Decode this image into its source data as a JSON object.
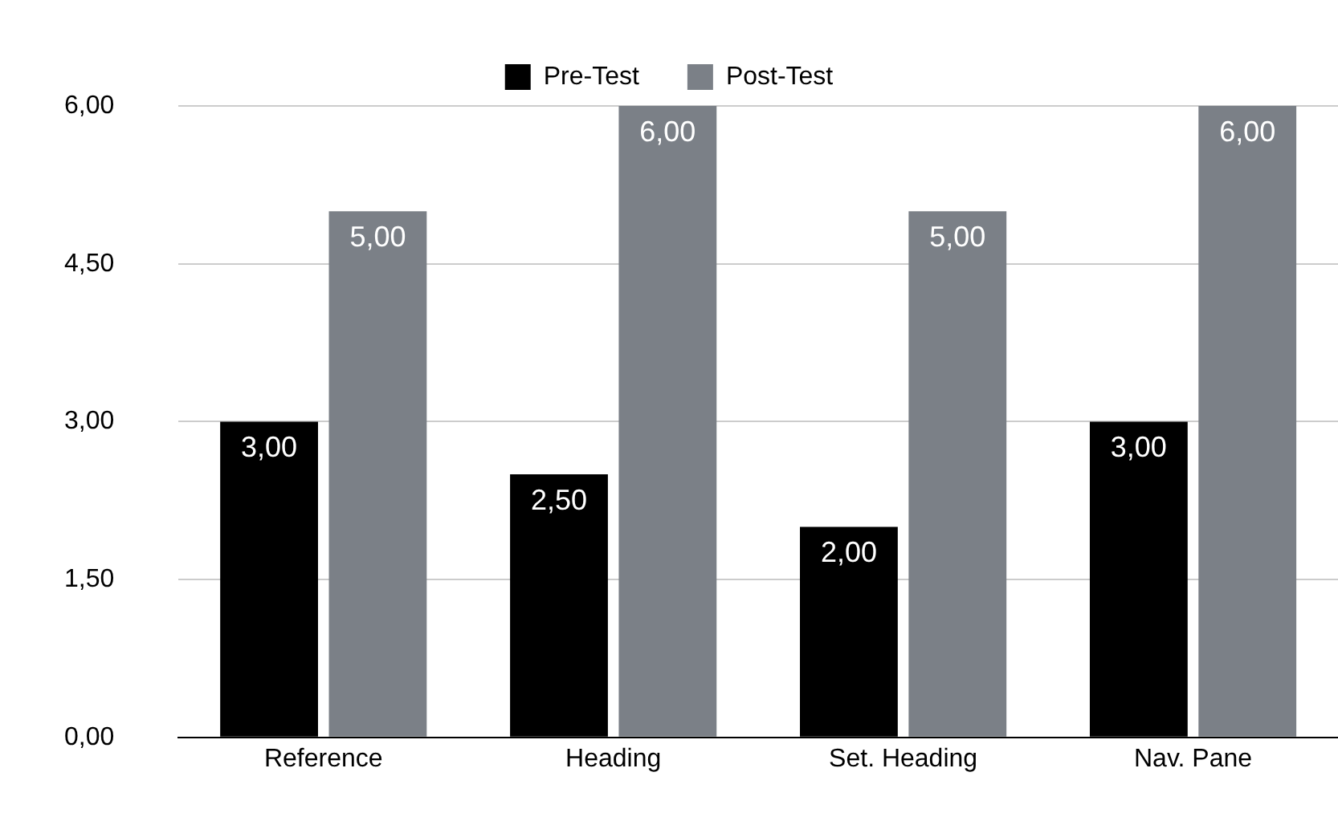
{
  "chart_data": {
    "type": "bar",
    "categories": [
      "Reference",
      "Heading",
      "Set. Heading",
      "Nav. Pane"
    ],
    "series": [
      {
        "name": "Pre-Test",
        "color": "#000000",
        "values": [
          3,
          2.5,
          2,
          3
        ],
        "value_labels": [
          "3,00",
          "2,50",
          "2,00",
          "3,00"
        ]
      },
      {
        "name": "Post-Test",
        "color": "#7b8087",
        "values": [
          5,
          6,
          5,
          6
        ],
        "value_labels": [
          "5,00",
          "6,00",
          "5,00",
          "6,00"
        ]
      }
    ],
    "ylim": [
      0,
      6
    ],
    "yticks": [
      {
        "value": 0,
        "label": "0,00"
      },
      {
        "value": 1.5,
        "label": "1,50"
      },
      {
        "value": 3,
        "label": "3,00"
      },
      {
        "value": 4.5,
        "label": "4,50"
      },
      {
        "value": 6,
        "label": "6,00"
      }
    ],
    "grid": "y",
    "legend": "top"
  }
}
